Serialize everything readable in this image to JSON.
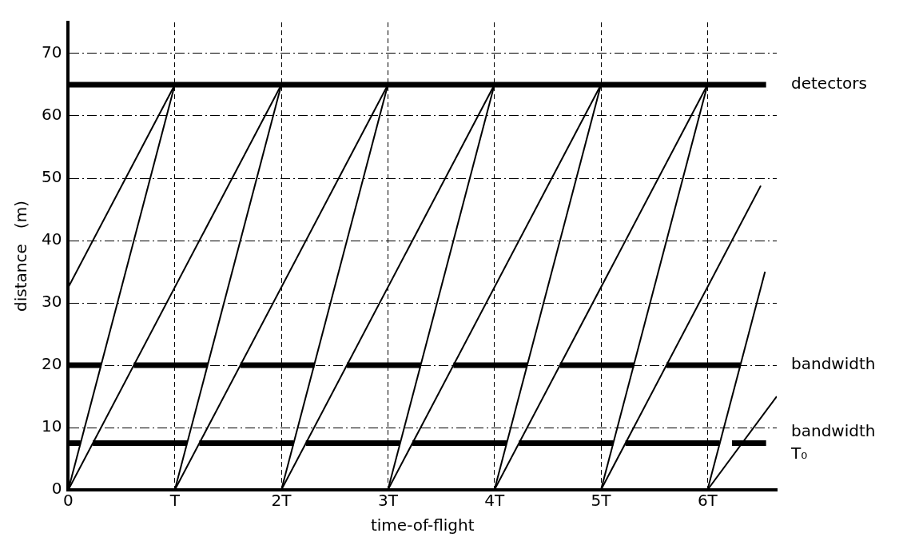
{
  "chart_data": {
    "type": "line",
    "xlabel": "time-of-flight",
    "ylabel": "distance   (m)",
    "xlim": [
      0,
      6.65
    ],
    "ylim": [
      0,
      75
    ],
    "xticks": [
      0,
      {
        "value": 1,
        "label": "T"
      },
      {
        "value": 2,
        "label": "2T"
      },
      {
        "value": 3,
        "label": "3T"
      },
      {
        "value": 4,
        "label": "4T"
      },
      {
        "value": 5,
        "label": "5T"
      },
      {
        "value": 6,
        "label": "6T"
      }
    ],
    "yticks": [
      0,
      10,
      20,
      30,
      40,
      50,
      60,
      70
    ],
    "grid": true,
    "legend": false,
    "marker": "none",
    "line_style": "solid",
    "annotations": [
      {
        "text": "bandwidth",
        "x": 6.55,
        "y": 7.5
      }
    ],
    "series": [
      {
        "name": "detectors",
        "color": "#000000",
        "x": [
          0,
          6.55
        ],
        "values": [
          65,
          65
        ]
      },
      {
        "name": "bandwidth",
        "color": "#000000",
        "x": [
          0,
          0.31,
          null,
          0.615,
          1.31,
          null,
          1.615,
          2.31,
          null,
          2.615,
          3.31,
          null,
          3.615,
          4.31,
          null,
          4.615,
          5.31,
          null,
          5.615,
          6.31
        ],
        "values": [
          20,
          20,
          null,
          20,
          20,
          null,
          20,
          20,
          null,
          20,
          20,
          null,
          20,
          20,
          null,
          20,
          20,
          null,
          20,
          20
        ]
      },
      {
        "name": "T₀",
        "color": "#000000",
        "x": [
          0,
          0.115,
          null,
          0.23,
          1.115,
          null,
          1.23,
          2.115,
          null,
          2.23,
          3.115,
          null,
          3.23,
          4.115,
          null,
          4.23,
          5.115,
          null,
          5.23,
          6.115,
          null,
          6.23,
          6.55
        ],
        "values": [
          7.5,
          7.5,
          null,
          7.5,
          7.5,
          null,
          7.5,
          7.5,
          null,
          7.5,
          7.5,
          null,
          7.5,
          7.5,
          null,
          7.5,
          7.5,
          null,
          7.5,
          7.5,
          null,
          7.5,
          7.5
        ]
      },
      {
        "color": "#000000",
        "x": [
          0,
          1
        ],
        "values": [
          32.5,
          65
        ]
      },
      {
        "color": "#000000",
        "x": [
          0,
          1
        ],
        "values": [
          0,
          65
        ]
      },
      {
        "color": "#000000",
        "x": [
          0,
          2
        ],
        "values": [
          0,
          65
        ]
      },
      {
        "color": "#000000",
        "x": [
          1,
          2
        ],
        "values": [
          0,
          65
        ]
      },
      {
        "color": "#000000",
        "x": [
          1,
          3
        ],
        "values": [
          0,
          65
        ]
      },
      {
        "color": "#000000",
        "x": [
          2,
          3
        ],
        "values": [
          0,
          65
        ]
      },
      {
        "color": "#000000",
        "x": [
          2,
          4
        ],
        "values": [
          0,
          65
        ]
      },
      {
        "color": "#000000",
        "x": [
          3,
          4
        ],
        "values": [
          0,
          65
        ]
      },
      {
        "color": "#000000",
        "x": [
          3,
          5
        ],
        "values": [
          0,
          65
        ]
      },
      {
        "color": "#000000",
        "x": [
          4,
          5
        ],
        "values": [
          0,
          65
        ]
      },
      {
        "color": "#000000",
        "x": [
          4,
          6
        ],
        "values": [
          0,
          65
        ]
      },
      {
        "color": "#000000",
        "x": [
          5,
          6
        ],
        "values": [
          0,
          65
        ]
      },
      {
        "color": "#000000",
        "x": [
          5,
          6.5
        ],
        "values": [
          0,
          48.8
        ]
      },
      {
        "color": "#000000",
        "x": [
          6,
          6.54
        ],
        "values": [
          0,
          35
        ]
      },
      {
        "color": "#000000",
        "x": [
          6,
          6.65
        ],
        "values": [
          0,
          15
        ]
      }
    ]
  }
}
